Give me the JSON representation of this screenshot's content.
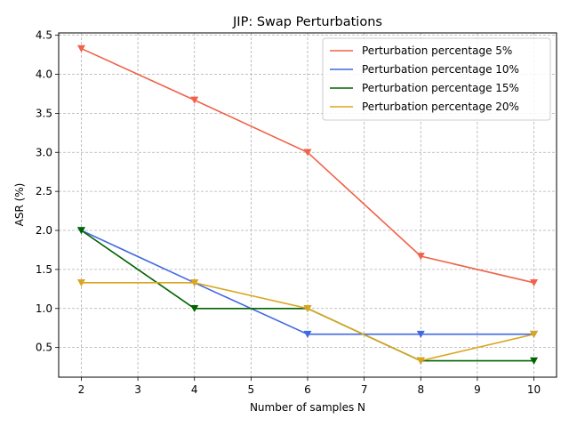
{
  "chart_data": {
    "type": "line",
    "title": "JIP: Swap Perturbations",
    "xlabel": "Number of samples N",
    "ylabel": "ASR (%)",
    "xlim": [
      1.6,
      10.4
    ],
    "ylim": [
      0.12,
      4.53
    ],
    "xticks": [
      2,
      3,
      4,
      5,
      6,
      7,
      8,
      9,
      10
    ],
    "yticks": [
      0.5,
      1.0,
      1.5,
      2.0,
      2.5,
      3.0,
      3.5,
      4.0,
      4.5
    ],
    "ytick_labels": [
      "0.5",
      "1.0",
      "1.5",
      "2.0",
      "2.5",
      "3.0",
      "3.5",
      "4.0",
      "4.5"
    ],
    "grid": true,
    "legend_position": "top-right",
    "marker": "triangle-down",
    "x": [
      2,
      4,
      6,
      8,
      10
    ],
    "series": [
      {
        "name": "Perturbation percentage 5%",
        "color": "#f0624a",
        "values": [
          4.33,
          3.67,
          3.0,
          1.67,
          1.33
        ]
      },
      {
        "name": "Perturbation percentage 10%",
        "color": "#4169e1",
        "values": [
          2.0,
          1.33,
          0.67,
          0.67,
          0.67
        ]
      },
      {
        "name": "Perturbation percentage 15%",
        "color": "#006400",
        "values": [
          2.0,
          1.0,
          1.0,
          0.33,
          0.33
        ]
      },
      {
        "name": "Perturbation percentage 20%",
        "color": "#daa520",
        "values": [
          1.33,
          1.33,
          1.0,
          0.33,
          0.67
        ]
      }
    ]
  }
}
